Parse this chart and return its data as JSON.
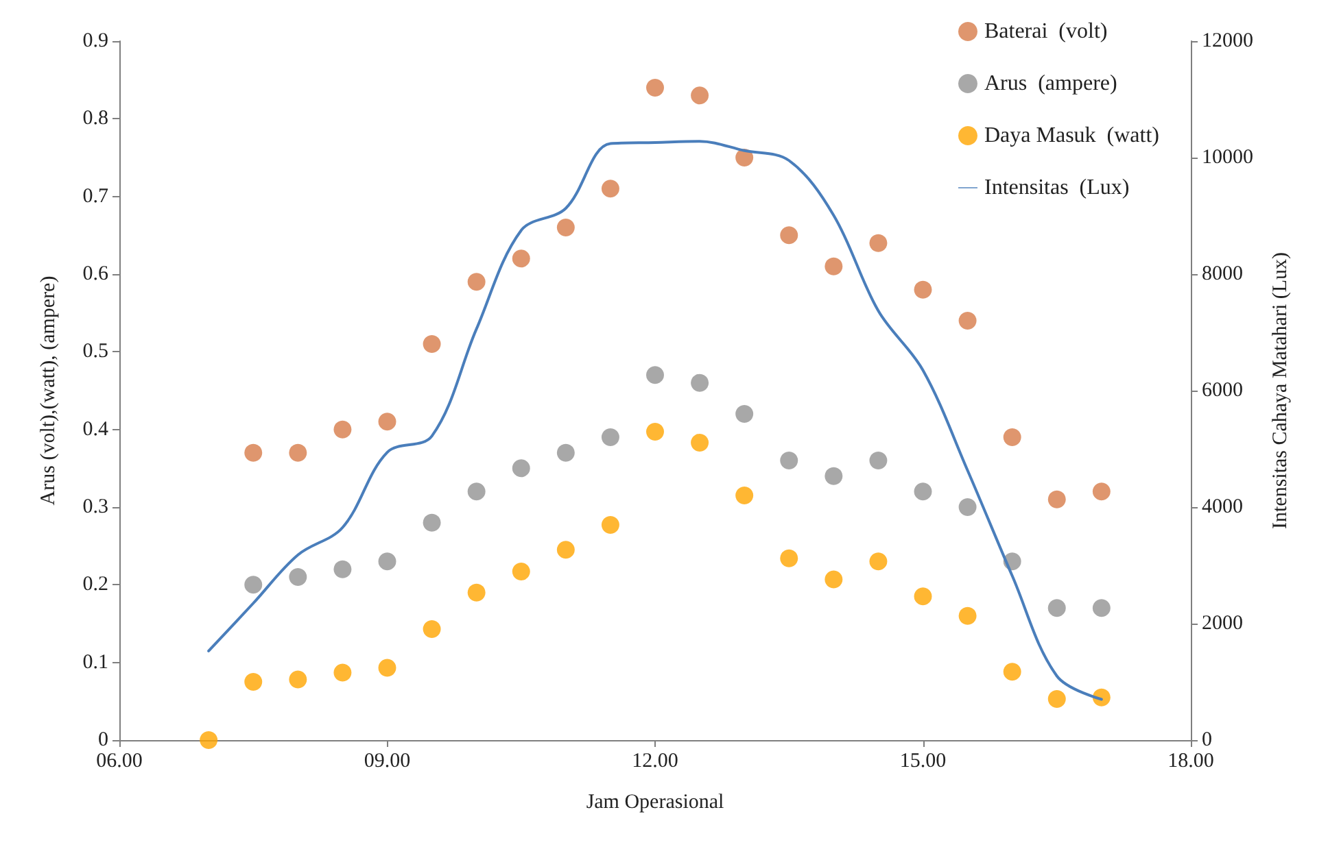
{
  "chart_data": {
    "type": "scatter",
    "xlabel": "Jam Operasional",
    "ylabel": "Arus (volt),(watt), (ampere)",
    "y2label": "Intensitas Cahaya Matahari (Lux)",
    "xlim": [
      6,
      18
    ],
    "xticks": [
      {
        "value": 6,
        "label": "06.00"
      },
      {
        "value": 9,
        "label": "09.00"
      },
      {
        "value": 12,
        "label": "12.00"
      },
      {
        "value": 15,
        "label": "15.00"
      },
      {
        "value": 18,
        "label": "18.00"
      }
    ],
    "ylim": [
      0,
      0.9
    ],
    "yticks": [
      0,
      0.1,
      0.2,
      0.3,
      0.4,
      0.5,
      0.6,
      0.7,
      0.8,
      0.9
    ],
    "y2lim": [
      0,
      12000
    ],
    "y2ticks": [
      0,
      2000,
      4000,
      6000,
      8000,
      10000,
      12000
    ],
    "legend": "top right",
    "marker": "circle",
    "grid": false,
    "series": [
      {
        "name": "Baterai  (volt)",
        "color": "#d77c4a",
        "x": [
          7.5,
          8,
          8.5,
          9,
          9.5,
          10,
          10.5,
          11,
          11.5,
          12,
          12.5,
          13,
          13.5,
          14,
          14.5,
          15,
          15.5,
          16,
          16.5,
          17
        ],
        "values": [
          0.37,
          0.37,
          0.4,
          0.41,
          0.51,
          0.59,
          0.62,
          0.66,
          0.71,
          0.84,
          0.83,
          0.75,
          0.65,
          0.61,
          0.64,
          0.58,
          0.54,
          0.39,
          0.31,
          0.32
        ]
      },
      {
        "name": "Arus  (ampere)",
        "color": "#929292",
        "x": [
          7.5,
          8,
          8.5,
          9,
          9.5,
          10,
          10.5,
          11,
          11.5,
          12,
          12.5,
          13,
          13.5,
          14,
          14.5,
          15,
          15.5,
          16,
          16.5,
          17
        ],
        "values": [
          0.2,
          0.21,
          0.22,
          0.23,
          0.28,
          0.32,
          0.35,
          0.37,
          0.39,
          0.47,
          0.46,
          0.42,
          0.36,
          0.34,
          0.36,
          0.32,
          0.3,
          0.23,
          0.17,
          0.17
        ]
      },
      {
        "name": "Daya Masuk  (watt)",
        "color": "#ffa500",
        "x": [
          7,
          7.5,
          8,
          8.5,
          9,
          9.5,
          10,
          10.5,
          11,
          11.5,
          12,
          12.5,
          13,
          13.5,
          14,
          14.5,
          15,
          15.5,
          16,
          16.5,
          17
        ],
        "values": [
          0,
          0.075,
          0.078,
          0.087,
          0.093,
          0.143,
          0.19,
          0.217,
          0.245,
          0.277,
          0.397,
          0.383,
          0.315,
          0.234,
          0.207,
          0.23,
          0.185,
          0.16,
          0.088,
          0.053,
          0.055
        ]
      },
      {
        "name": "Intensitas  (Lux)",
        "type": "line",
        "axis": "y2",
        "marker": "none",
        "line_style": "solid",
        "color": "#4a7ebb",
        "x": [
          7,
          7.5,
          8,
          8.5,
          9,
          9.5,
          10,
          10.5,
          11,
          11.5,
          12,
          12.5,
          13,
          13.5,
          14,
          14.5,
          15,
          15.5,
          16,
          16.5,
          17
        ],
        "values": [
          1530,
          2350,
          3180,
          3650,
          4940,
          5220,
          7060,
          8750,
          9130,
          10240,
          10260,
          10280,
          10120,
          9950,
          9010,
          7370,
          6350,
          4630,
          2820,
          1100,
          700
        ]
      }
    ]
  }
}
